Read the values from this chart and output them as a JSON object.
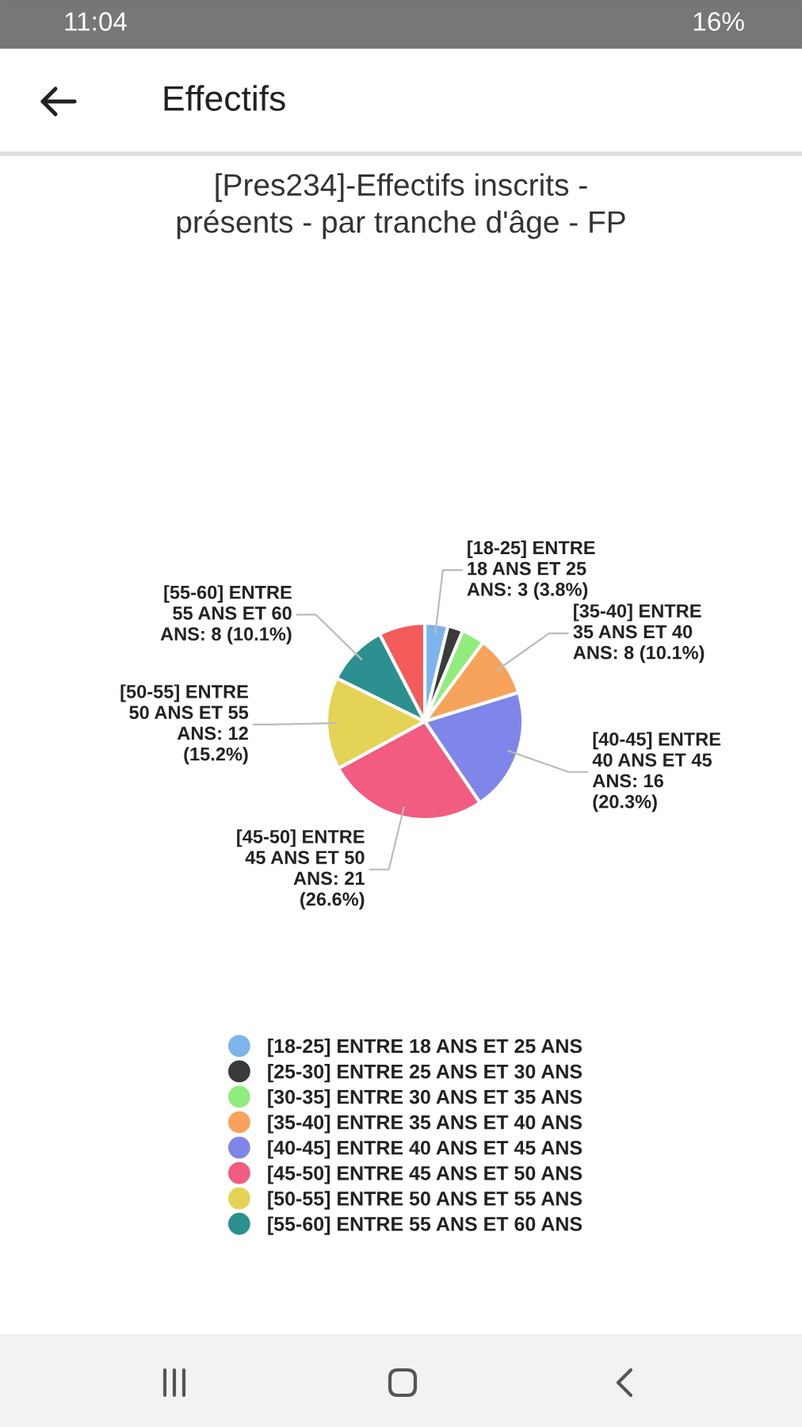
{
  "chart_data": {
    "type": "pie",
    "title": "[Pres234]-Effectifs inscrits - présents - par tranche d'âge - FP",
    "categories": [
      "[18-25] ENTRE 18 ANS ET 25 ANS",
      "[25-30] ENTRE 25 ANS ET 30 ANS",
      "[30-35] ENTRE 30 ANS ET 35 ANS",
      "[35-40] ENTRE 35 ANS ET 40 ANS",
      "[40-45] ENTRE 40 ANS ET 45 ANS",
      "[45-50] ENTRE 45 ANS ET 50 ANS",
      "[50-55] ENTRE 50 ANS ET 55 ANS",
      "[55-60] ENTRE 55 ANS ET 60 ANS",
      null
    ],
    "values": [
      3,
      2,
      3,
      8,
      16,
      21,
      12,
      8,
      6
    ],
    "colors": [
      "#7cb5ec",
      "#3a3a3a",
      "#90ed7d",
      "#f7a35c",
      "#8085e9",
      "#f15c80",
      "#e4d354",
      "#2b908f",
      "#f45b5b"
    ],
    "value_labels": [
      "[18-25] ENTRE 18 ANS ET 25 ANS: 3 (3.8%)",
      null,
      null,
      "[35-40] ENTRE 35 ANS ET 40 ANS: 8 (10.1%)",
      "[40-45] ENTRE 40 ANS ET 45 ANS: 16 (20.3%)",
      "[45-50] ENTRE 45 ANS ET 50 ANS: 21 (26.6%)",
      "[50-55] ENTRE 50 ANS ET 55 ANS: 12 (15.2%)",
      "[55-60] ENTRE 55 ANS ET 60 ANS: 8 (10.1%)",
      null
    ],
    "legend": "bottom",
    "annotations": [
      "11:04",
      "16%",
      "Effectifs"
    ]
  }
}
